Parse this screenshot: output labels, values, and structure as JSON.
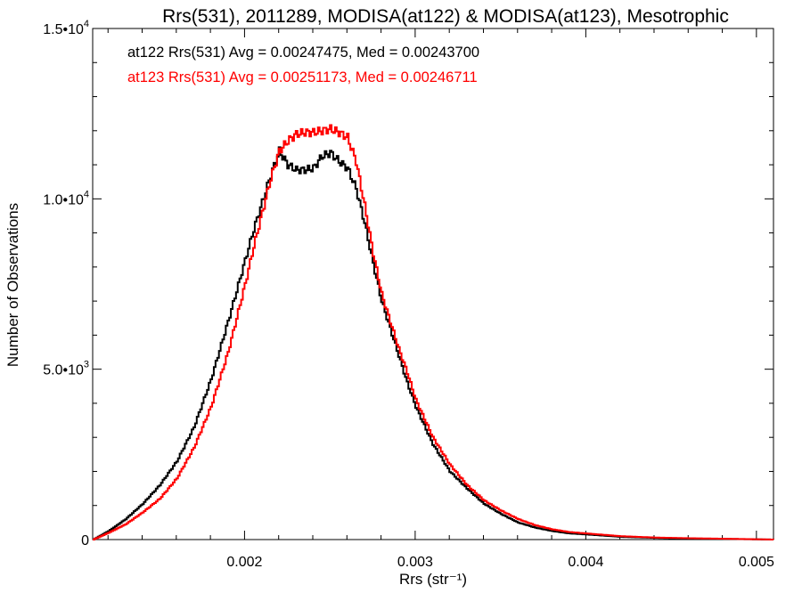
{
  "chart_data": {
    "type": "line",
    "title": "Rrs(531), 2011289, MODISA(at122) & MODISA(at123), Mesotrophic",
    "xlabel": "Rrs (str⁻¹)",
    "ylabel": "Number of Observations",
    "xlim": [
      0.00111,
      0.0051
    ],
    "ylim": [
      0,
      15000
    ],
    "x_ticks": [
      {
        "value": 0.002,
        "label": "0.002"
      },
      {
        "value": 0.003,
        "label": "0.003"
      },
      {
        "value": 0.004,
        "label": "0.004"
      },
      {
        "value": 0.005,
        "label": "0.005"
      }
    ],
    "y_ticks": [
      {
        "value": 0,
        "label": "0",
        "sup": ""
      },
      {
        "value": 5000,
        "label": "5.0•10",
        "sup": "3"
      },
      {
        "value": 10000,
        "label": "1.0•10",
        "sup": "4"
      },
      {
        "value": 15000,
        "label": "1.5•10",
        "sup": "4"
      }
    ],
    "grid": false,
    "legend_position": "top-left",
    "series": [
      {
        "name": "at122",
        "color": "#000000",
        "legend": "at122 Rrs(531) Avg = 0.00247475, Med = 0.00243700",
        "x": [
          0.00111,
          0.0012,
          0.0013,
          0.0014,
          0.0015,
          0.0016,
          0.0017,
          0.0018,
          0.0019,
          0.002,
          0.00205,
          0.0021,
          0.00215,
          0.0022,
          0.00225,
          0.0023,
          0.00235,
          0.0024,
          0.00245,
          0.0025,
          0.00255,
          0.0026,
          0.00265,
          0.0027,
          0.00275,
          0.0028,
          0.00285,
          0.0029,
          0.00295,
          0.003,
          0.0031,
          0.0032,
          0.0033,
          0.0034,
          0.0035,
          0.0036,
          0.0037,
          0.0038,
          0.0039,
          0.004,
          0.0042,
          0.0044,
          0.0046,
          0.0048,
          0.0051
        ],
        "y": [
          0,
          250,
          600,
          1050,
          1600,
          2300,
          3300,
          4700,
          6400,
          8200,
          9100,
          9900,
          10700,
          11400,
          11000,
          10850,
          10850,
          10900,
          11250,
          11350,
          11100,
          10900,
          10300,
          9300,
          8100,
          7000,
          6200,
          5400,
          4600,
          3900,
          2800,
          2000,
          1500,
          1050,
          750,
          500,
          350,
          250,
          180,
          150,
          80,
          50,
          30,
          20,
          0
        ]
      },
      {
        "name": "at123",
        "color": "#ff0000",
        "legend": "at123 Rrs(531) Avg = 0.00251173, Med = 0.00246711",
        "x": [
          0.00111,
          0.0012,
          0.0013,
          0.0014,
          0.0015,
          0.0016,
          0.0017,
          0.0018,
          0.0019,
          0.002,
          0.00205,
          0.0021,
          0.00215,
          0.0022,
          0.00225,
          0.0023,
          0.00235,
          0.0024,
          0.00245,
          0.0025,
          0.00255,
          0.0026,
          0.00265,
          0.0027,
          0.00275,
          0.0028,
          0.00285,
          0.0029,
          0.00295,
          0.003,
          0.0031,
          0.0032,
          0.0033,
          0.0034,
          0.0035,
          0.0036,
          0.0037,
          0.0038,
          0.0039,
          0.004,
          0.0042,
          0.0044,
          0.0046,
          0.0048,
          0.0051
        ],
        "y": [
          0,
          200,
          450,
          800,
          1200,
          1800,
          2700,
          3900,
          5500,
          7500,
          8600,
          9600,
          10600,
          11400,
          11700,
          11900,
          11950,
          11950,
          12000,
          12050,
          11950,
          11800,
          11100,
          9800,
          8400,
          7200,
          6400,
          5600,
          4900,
          4100,
          3000,
          2200,
          1600,
          1150,
          850,
          600,
          420,
          300,
          220,
          180,
          100,
          60,
          40,
          25,
          0
        ]
      }
    ]
  }
}
